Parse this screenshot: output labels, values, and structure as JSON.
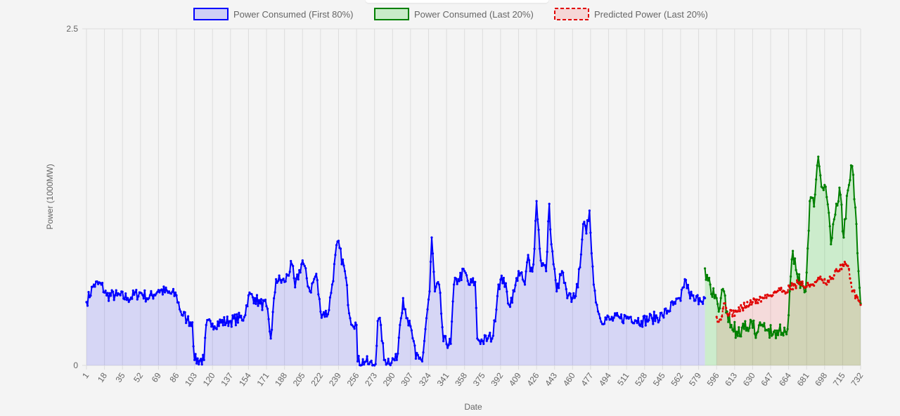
{
  "chart_data": {
    "type": "line",
    "xlabel": "Date",
    "ylabel": "Power (1000MW)",
    "ylim": [
      0,
      2.5
    ],
    "y_ticks": [
      "0",
      "2.5"
    ],
    "x_range": [
      1,
      732
    ],
    "x_ticks": [
      "1",
      "18",
      "35",
      "52",
      "69",
      "86",
      "103",
      "120",
      "137",
      "154",
      "171",
      "188",
      "205",
      "222",
      "239",
      "256",
      "273",
      "290",
      "307",
      "324",
      "341",
      "358",
      "375",
      "392",
      "409",
      "426",
      "443",
      "460",
      "477",
      "494",
      "511",
      "528",
      "545",
      "562",
      "579",
      "596",
      "613",
      "630",
      "647",
      "664",
      "681",
      "698",
      "715",
      "732"
    ],
    "grid": true,
    "legend_position": "top-center",
    "series": [
      {
        "name": "Power Consumed (First 80%)",
        "color": "#0000ff",
        "fill": "rgba(0,0,255,0.12)",
        "x_start": 1,
        "x_end": 585,
        "anchors": [
          [
            1,
            0.47
          ],
          [
            8,
            0.6
          ],
          [
            15,
            0.6
          ],
          [
            20,
            0.52
          ],
          [
            30,
            0.52
          ],
          [
            40,
            0.5
          ],
          [
            52,
            0.54
          ],
          [
            60,
            0.5
          ],
          [
            69,
            0.56
          ],
          [
            78,
            0.54
          ],
          [
            86,
            0.52
          ],
          [
            90,
            0.4
          ],
          [
            96,
            0.34
          ],
          [
            101,
            0.32
          ],
          [
            103,
            0.04
          ],
          [
            112,
            0.04
          ],
          [
            114,
            0.3
          ],
          [
            120,
            0.31
          ],
          [
            137,
            0.33
          ],
          [
            150,
            0.36
          ],
          [
            154,
            0.52
          ],
          [
            160,
            0.5
          ],
          [
            165,
            0.46
          ],
          [
            171,
            0.44
          ],
          [
            175,
            0.2
          ],
          [
            180,
            0.64
          ],
          [
            188,
            0.62
          ],
          [
            195,
            0.75
          ],
          [
            198,
            0.58
          ],
          [
            205,
            0.78
          ],
          [
            212,
            0.55
          ],
          [
            218,
            0.68
          ],
          [
            222,
            0.4
          ],
          [
            229,
            0.38
          ],
          [
            233,
            0.6
          ],
          [
            238,
            0.92
          ],
          [
            245,
            0.7
          ],
          [
            250,
            0.35
          ],
          [
            256,
            0.3
          ],
          [
            257,
            0.03
          ],
          [
            265,
            0.03
          ],
          [
            268,
            0.01
          ],
          [
            274,
            0.01
          ],
          [
            276,
            0.33
          ],
          [
            279,
            0.3
          ],
          [
            282,
            0.04
          ],
          [
            294,
            0.04
          ],
          [
            297,
            0.3
          ],
          [
            300,
            0.5
          ],
          [
            304,
            0.35
          ],
          [
            310,
            0.18
          ],
          [
            312,
            0.05
          ],
          [
            315,
            0.05
          ],
          [
            318,
            0.03
          ],
          [
            322,
            0.35
          ],
          [
            325,
            0.55
          ],
          [
            327,
            0.95
          ],
          [
            330,
            0.55
          ],
          [
            334,
            0.6
          ],
          [
            338,
            0.18
          ],
          [
            345,
            0.16
          ],
          [
            348,
            0.6
          ],
          [
            352,
            0.64
          ],
          [
            358,
            0.7
          ],
          [
            362,
            0.6
          ],
          [
            368,
            0.62
          ],
          [
            370,
            0.2
          ],
          [
            375,
            0.18
          ],
          [
            380,
            0.2
          ],
          [
            385,
            0.22
          ],
          [
            390,
            0.6
          ],
          [
            395,
            0.65
          ],
          [
            400,
            0.45
          ],
          [
            405,
            0.55
          ],
          [
            409,
            0.7
          ],
          [
            415,
            0.6
          ],
          [
            418,
            0.82
          ],
          [
            420,
            0.7
          ],
          [
            423,
            0.75
          ],
          [
            426,
            1.22
          ],
          [
            430,
            0.78
          ],
          [
            435,
            0.7
          ],
          [
            438,
            1.2
          ],
          [
            440,
            0.9
          ],
          [
            445,
            0.55
          ],
          [
            450,
            0.7
          ],
          [
            455,
            0.5
          ],
          [
            460,
            0.5
          ],
          [
            465,
            0.58
          ],
          [
            470,
            1.05
          ],
          [
            473,
            0.98
          ],
          [
            476,
            1.15
          ],
          [
            480,
            0.6
          ],
          [
            483,
            0.45
          ],
          [
            486,
            0.35
          ],
          [
            495,
            0.34
          ],
          [
            505,
            0.35
          ],
          [
            515,
            0.36
          ],
          [
            525,
            0.33
          ],
          [
            535,
            0.35
          ],
          [
            545,
            0.37
          ],
          [
            555,
            0.45
          ],
          [
            562,
            0.48
          ],
          [
            566,
            0.64
          ],
          [
            570,
            0.54
          ],
          [
            575,
            0.48
          ],
          [
            580,
            0.5
          ],
          [
            585,
            0.5
          ]
        ],
        "noise": 0.045,
        "seed": 7
      },
      {
        "name": "Power Consumed (Last 20%)",
        "color": "#008000",
        "fill": "rgba(0,200,0,0.16)",
        "x_start": 585,
        "x_end": 732,
        "anchors": [
          [
            585,
            0.72
          ],
          [
            590,
            0.6
          ],
          [
            594,
            0.5
          ],
          [
            598,
            0.4
          ],
          [
            600,
            0.5
          ],
          [
            603,
            0.55
          ],
          [
            606,
            0.4
          ],
          [
            610,
            0.3
          ],
          [
            615,
            0.25
          ],
          [
            620,
            0.28
          ],
          [
            625,
            0.28
          ],
          [
            630,
            0.28
          ],
          [
            635,
            0.25
          ],
          [
            640,
            0.29
          ],
          [
            645,
            0.27
          ],
          [
            650,
            0.25
          ],
          [
            655,
            0.26
          ],
          [
            660,
            0.28
          ],
          [
            663,
            0.27
          ],
          [
            665,
            0.55
          ],
          [
            668,
            0.85
          ],
          [
            672,
            0.68
          ],
          [
            676,
            0.62
          ],
          [
            680,
            0.55
          ],
          [
            684,
            1.22
          ],
          [
            688,
            1.18
          ],
          [
            692,
            1.55
          ],
          [
            696,
            1.32
          ],
          [
            700,
            1.25
          ],
          [
            704,
            0.9
          ],
          [
            708,
            1.12
          ],
          [
            712,
            1.32
          ],
          [
            716,
            0.95
          ],
          [
            720,
            1.3
          ],
          [
            724,
            1.48
          ],
          [
            728,
            1.05
          ],
          [
            730,
            0.7
          ],
          [
            732,
            0.46
          ]
        ],
        "noise": 0.06,
        "seed": 19
      },
      {
        "name": "Predicted Power (Last 20%)",
        "color": "#e00000",
        "fill": "rgba(255,0,0,0.10)",
        "dashed": true,
        "x_start": 596,
        "x_end": 732,
        "anchors": [
          [
            596,
            0.36
          ],
          [
            600,
            0.34
          ],
          [
            603,
            0.46
          ],
          [
            608,
            0.38
          ],
          [
            615,
            0.4
          ],
          [
            620,
            0.43
          ],
          [
            630,
            0.47
          ],
          [
            640,
            0.5
          ],
          [
            650,
            0.54
          ],
          [
            656,
            0.56
          ],
          [
            660,
            0.55
          ],
          [
            665,
            0.58
          ],
          [
            670,
            0.6
          ],
          [
            675,
            0.62
          ],
          [
            680,
            0.58
          ],
          [
            685,
            0.6
          ],
          [
            690,
            0.62
          ],
          [
            695,
            0.64
          ],
          [
            700,
            0.6
          ],
          [
            705,
            0.65
          ],
          [
            710,
            0.7
          ],
          [
            715,
            0.75
          ],
          [
            720,
            0.74
          ],
          [
            724,
            0.55
          ],
          [
            728,
            0.52
          ],
          [
            732,
            0.45
          ]
        ],
        "noise": 0.03,
        "seed": 31
      }
    ]
  }
}
